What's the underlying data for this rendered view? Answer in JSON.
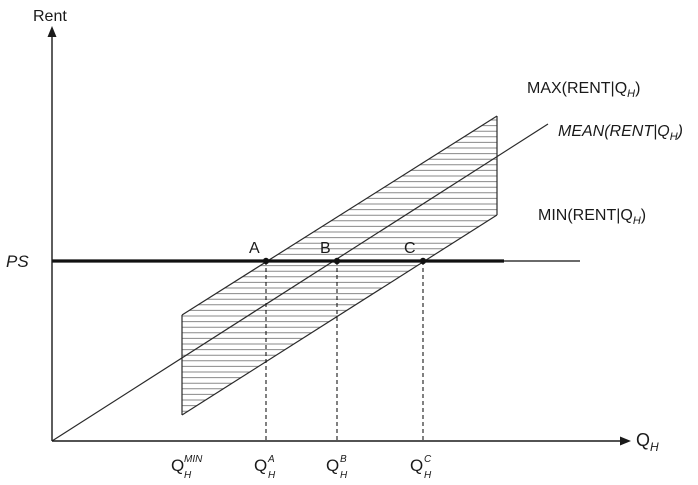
{
  "axes": {
    "y_label": "Rent",
    "x_label": {
      "base": "Q",
      "sub": "H"
    }
  },
  "curves": {
    "max": {
      "prefix": "MAX(RENT|Q",
      "sub": "H",
      "suffix": ")"
    },
    "mean": {
      "prefix": "MEAN(RENT|Q",
      "sub": "H",
      "suffix": ")"
    },
    "min": {
      "prefix": "MIN(RENT|Q",
      "sub": "H",
      "suffix": ")"
    }
  },
  "ps_label": "PS",
  "points": [
    {
      "label": "A"
    },
    {
      "label": "B"
    },
    {
      "label": "C"
    }
  ],
  "x_ticks": [
    {
      "base": "Q",
      "sup": "MIN",
      "sub": "H"
    },
    {
      "base": "Q",
      "sup": "A",
      "sub": "H"
    },
    {
      "base": "Q",
      "sup": "B",
      "sub": "H"
    },
    {
      "base": "Q",
      "sup": "C",
      "sub": "H"
    }
  ]
}
